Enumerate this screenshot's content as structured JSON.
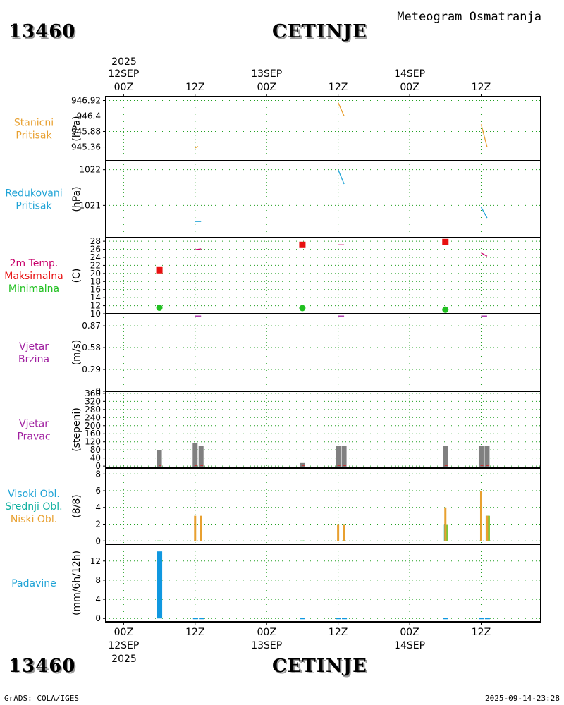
{
  "header": {
    "station_id": "13460",
    "station_name": "CETINJE",
    "meteogram_title": "Meteogram Osmatranja"
  },
  "footer": {
    "credit": "GrADS: COLA/IGES",
    "timestamp": "2025-09-14-23:28"
  },
  "time_axis": {
    "top_year": "2025",
    "bottom_year": "2025",
    "ticks": [
      {
        "hour": 0,
        "label": "00Z",
        "date": "12SEP"
      },
      {
        "hour": 12,
        "label": "12Z",
        "date": ""
      },
      {
        "hour": 24,
        "label": "00Z",
        "date": "13SEP"
      },
      {
        "hour": 36,
        "label": "12Z",
        "date": ""
      },
      {
        "hour": 48,
        "label": "00Z",
        "date": "14SEP"
      },
      {
        "hour": 60,
        "label": "12Z",
        "date": ""
      }
    ],
    "range_hours": [
      -3,
      70
    ]
  },
  "colors": {
    "station_pressure": "#e8a030",
    "reduced_pressure": "#1fa3d6",
    "temp_title": "#c8006a",
    "tmax": "#e81010",
    "tmin": "#20c020",
    "wind": "#a020a0",
    "wind_dir_bar": "#808080",
    "high_cloud": "#1fa3d6",
    "mid_cloud": "#10b0a0",
    "low_cloud": "#e8a030",
    "precip": "#1098e0",
    "grid": "#22a022"
  },
  "panels": [
    {
      "key": "p_station",
      "labels": [
        "Stanicni",
        "Pritisak"
      ],
      "label_colors": [
        "#e8a030",
        "#e8a030"
      ],
      "unit": "(hPa)"
    },
    {
      "key": "p_reduced",
      "labels": [
        "Redukovani",
        "Pritisak"
      ],
      "label_colors": [
        "#1fa3d6",
        "#1fa3d6"
      ],
      "unit": "(hPa)"
    },
    {
      "key": "temp",
      "labels": [
        "2m Temp.",
        "Maksimalna",
        "Minimalna"
      ],
      "label_colors": [
        "#c8006a",
        "#e81010",
        "#20c020"
      ],
      "unit": "(C)"
    },
    {
      "key": "wind_speed",
      "labels": [
        "Vjetar",
        "Brzina"
      ],
      "label_colors": [
        "#a020a0",
        "#a020a0"
      ],
      "unit": "(m/s)"
    },
    {
      "key": "wind_dir",
      "labels": [
        "Vjetar",
        "Pravac"
      ],
      "label_colors": [
        "#a020a0",
        "#a020a0"
      ],
      "unit": "(stepeni)"
    },
    {
      "key": "clouds",
      "labels": [
        "Visoki Obl.",
        "Srednji Obl.",
        "Niski Obl."
      ],
      "label_colors": [
        "#1fa3d6",
        "#10b0a0",
        "#e8a030"
      ],
      "unit": "(8/8)"
    },
    {
      "key": "precip",
      "labels": [
        "Padavine"
      ],
      "label_colors": [
        "#1fa3d6"
      ],
      "unit": "(mm/6h/12h)"
    }
  ],
  "chart_data": [
    {
      "type": "line",
      "key": "p_station",
      "ylabel": "(hPa)",
      "yticks": [
        "946.92",
        "946.4",
        "945.88",
        "945.36"
      ],
      "ylim": [
        944.9,
        947.05
      ],
      "series": [
        {
          "values": [
            [
              12,
              945.33
            ],
            [
              12.5,
              945.38
            ]
          ]
        },
        {
          "values": [
            [
              36,
              946.85
            ],
            [
              37,
              946.4
            ]
          ]
        },
        {
          "values": [
            [
              60,
              946.12
            ],
            [
              61,
              945.36
            ]
          ]
        }
      ]
    },
    {
      "type": "line",
      "key": "p_reduced",
      "ylabel": "(hPa)",
      "yticks": [
        "1022",
        "1021"
      ],
      "ylim": [
        1020.1,
        1022.25
      ],
      "series": [
        {
          "values": [
            [
              12,
              1020.55
            ],
            [
              13,
              1020.55
            ]
          ]
        },
        {
          "values": [
            [
              36,
              1022.0
            ],
            [
              37,
              1021.6
            ]
          ]
        },
        {
          "values": [
            [
              60,
              1020.95
            ],
            [
              61,
              1020.65
            ]
          ]
        }
      ]
    },
    {
      "type": "line",
      "key": "temp",
      "ylabel": "(C)",
      "yticks": [
        "10",
        "12",
        "14",
        "16",
        "18",
        "20",
        "22",
        "24",
        "26",
        "28"
      ],
      "ylim": [
        10,
        28.9
      ],
      "series": [
        {
          "values": [
            [
              12,
              25.9
            ],
            [
              13,
              26.1
            ]
          ]
        },
        {
          "values": [
            [
              36,
              27.1
            ],
            [
              37,
              27.1
            ]
          ]
        },
        {
          "values": [
            [
              60,
              25.1
            ],
            [
              61,
              24.3
            ]
          ]
        }
      ],
      "tmax": [
        [
          6,
          20.8
        ],
        [
          30,
          27.1
        ],
        [
          54,
          27.8
        ]
      ],
      "tmin": [
        [
          6,
          11.5
        ],
        [
          30,
          11.4
        ],
        [
          54,
          11.0
        ]
      ]
    },
    {
      "type": "line",
      "key": "wind_speed",
      "ylabel": "(m/s)",
      "yticks": [
        "0",
        "0.29",
        "0.58",
        "0.87"
      ],
      "ylim": [
        0,
        1.03
      ],
      "series": [
        {
          "values": [
            [
              12,
              1.0
            ],
            [
              13,
              1.0
            ]
          ]
        },
        {
          "values": [
            [
              36,
              1.0
            ],
            [
              37,
              1.0
            ]
          ]
        },
        {
          "values": [
            [
              60,
              1.0
            ],
            [
              61,
              1.0
            ]
          ]
        }
      ]
    },
    {
      "type": "bar",
      "key": "wind_dir",
      "ylabel": "(stepeni)",
      "yticks": [
        "0",
        "40",
        "80",
        "120",
        "160",
        "200",
        "240",
        "280",
        "320",
        "360"
      ],
      "ylim": [
        -10,
        370
      ],
      "bars": [
        [
          6,
          80
        ],
        [
          12,
          113
        ],
        [
          13,
          100
        ],
        [
          30,
          15
        ],
        [
          36,
          100
        ],
        [
          37,
          100
        ],
        [
          54,
          100
        ],
        [
          60,
          100
        ],
        [
          61,
          100
        ]
      ]
    },
    {
      "type": "bar",
      "key": "clouds",
      "ylabel": "(8/8)",
      "yticks": [
        "0",
        "2",
        "4",
        "6",
        "8"
      ],
      "ylim": [
        -0.4,
        8.7
      ],
      "low": [
        [
          6,
          0
        ],
        [
          12,
          3
        ],
        [
          13,
          3
        ],
        [
          30,
          0
        ],
        [
          36,
          2
        ],
        [
          37,
          2
        ],
        [
          54,
          4
        ],
        [
          60,
          6
        ],
        [
          61,
          3
        ]
      ],
      "mid": [
        [
          6,
          0
        ],
        [
          12,
          0
        ],
        [
          13,
          0
        ],
        [
          30,
          0
        ],
        [
          36,
          0
        ],
        [
          37,
          0
        ],
        [
          54,
          2
        ],
        [
          60,
          0
        ],
        [
          61,
          3
        ]
      ],
      "high": [
        [
          6,
          0
        ],
        [
          12,
          0
        ],
        [
          13,
          0
        ],
        [
          30,
          0
        ],
        [
          36,
          0
        ],
        [
          37,
          0
        ],
        [
          54,
          0
        ],
        [
          60,
          0
        ],
        [
          61,
          0
        ]
      ]
    },
    {
      "type": "bar",
      "key": "precip",
      "ylabel": "(mm/6h/12h)",
      "yticks": [
        "0",
        "4",
        "8",
        "12"
      ],
      "ylim": [
        -0.7,
        15.5
      ],
      "values": [
        [
          6,
          14
        ],
        [
          12,
          0
        ],
        [
          13,
          0
        ],
        [
          30,
          0
        ],
        [
          36,
          0
        ],
        [
          37,
          0
        ],
        [
          54,
          0
        ],
        [
          60,
          0
        ],
        [
          61,
          0
        ]
      ]
    }
  ]
}
